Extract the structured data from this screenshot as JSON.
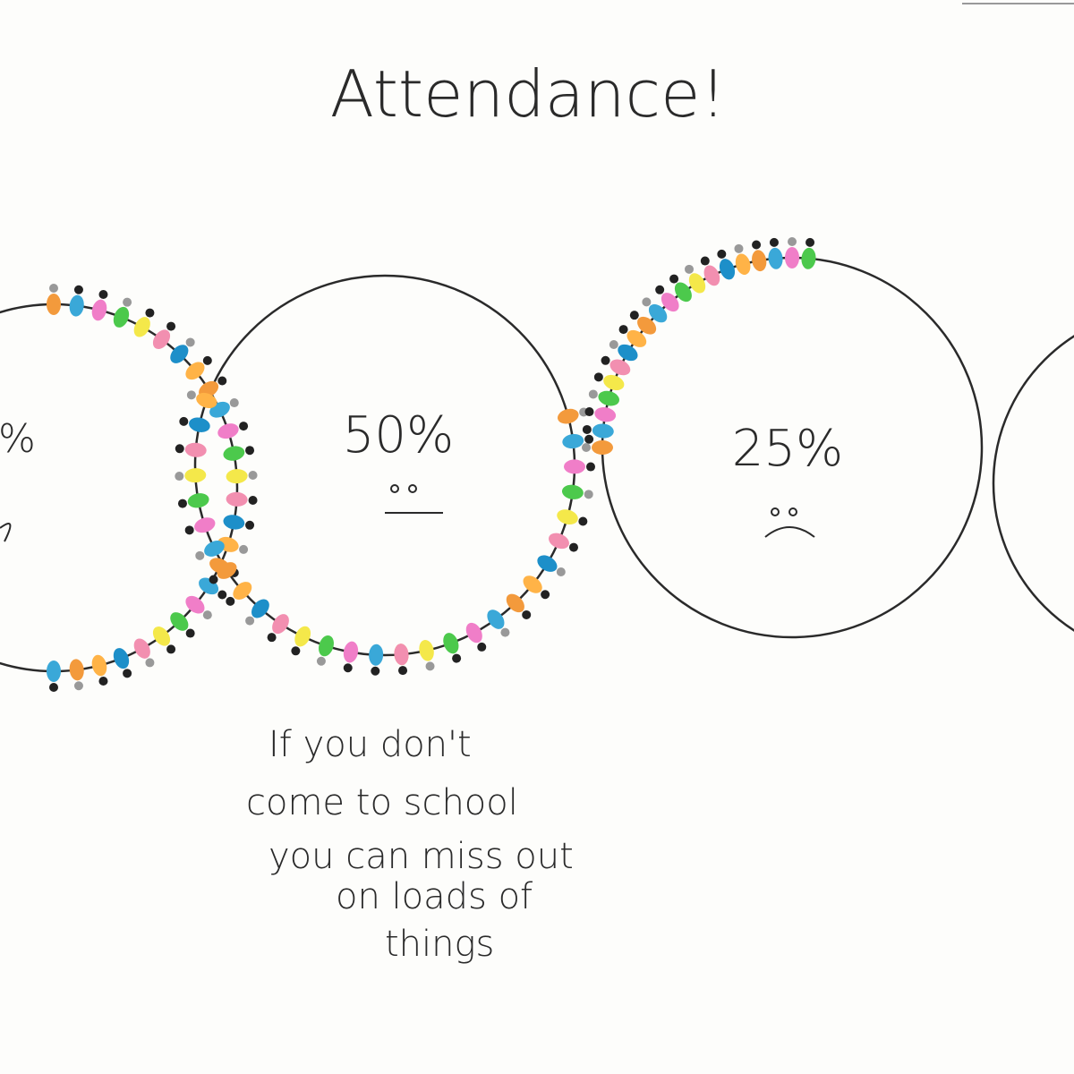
{
  "title": "Attendance!",
  "circles": [
    {
      "label": "%"
    },
    {
      "label": "50%"
    },
    {
      "label": "25%"
    }
  ],
  "note": {
    "lines": [
      "If you don't",
      "come to school",
      "you can miss out",
      "on loads of",
      "things"
    ]
  }
}
